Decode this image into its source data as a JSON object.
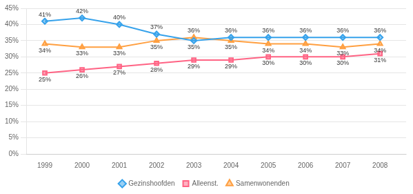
{
  "chart_data": {
    "type": "line",
    "x": [
      1999,
      2000,
      2001,
      2002,
      2003,
      2004,
      2005,
      2006,
      2007,
      2008
    ],
    "xlim": [
      1998.5,
      2008.7
    ],
    "xticks": [
      1999,
      2000,
      2001,
      2002,
      2003,
      2004,
      2005,
      2006,
      2007,
      2008
    ],
    "ylim": [
      0.0,
      0.45
    ],
    "yticks": [
      {
        "value": 0.0,
        "label": "0%"
      },
      {
        "value": 0.05,
        "label": "5%"
      },
      {
        "value": 0.1,
        "label": "10%"
      },
      {
        "value": 0.15,
        "label": "15%"
      },
      {
        "value": 0.2,
        "label": "20%"
      },
      {
        "value": 0.25,
        "label": "25%"
      },
      {
        "value": 0.3,
        "label": "30%"
      },
      {
        "value": 0.35,
        "label": "35%"
      },
      {
        "value": 0.4,
        "label": "40%"
      },
      {
        "value": 0.45,
        "label": "45%"
      }
    ],
    "grid": "y",
    "legend": "bottom",
    "data_labels": true,
    "series": [
      {
        "name": "Gezinshoofden",
        "marker": "diamond",
        "values": [
          0.41,
          0.42,
          0.4,
          0.37,
          0.35,
          0.36,
          0.36,
          0.36,
          0.36,
          0.36
        ],
        "value_labels": [
          "41%",
          "42%",
          "40%",
          "37%",
          "35%",
          "36%",
          "36%",
          "36%",
          "36%",
          "36%"
        ]
      },
      {
        "name": "Alleenst.",
        "marker": "square",
        "values": [
          0.25,
          0.26,
          0.27,
          0.28,
          0.29,
          0.29,
          0.3,
          0.3,
          0.3,
          0.31
        ],
        "value_labels": [
          "25%",
          "26%",
          "27%",
          "28%",
          "29%",
          "29%",
          "30%",
          "30%",
          "30%",
          "31%"
        ]
      },
      {
        "name": "Samenwonenden",
        "marker": "triangle",
        "values": [
          0.34,
          0.33,
          0.33,
          0.35,
          0.36,
          0.35,
          0.34,
          0.34,
          0.33,
          0.34
        ],
        "value_labels": [
          "34%",
          "33%",
          "33%",
          "35%",
          "36%",
          "35%",
          "34%",
          "34%",
          "33%",
          "34%"
        ]
      }
    ]
  }
}
